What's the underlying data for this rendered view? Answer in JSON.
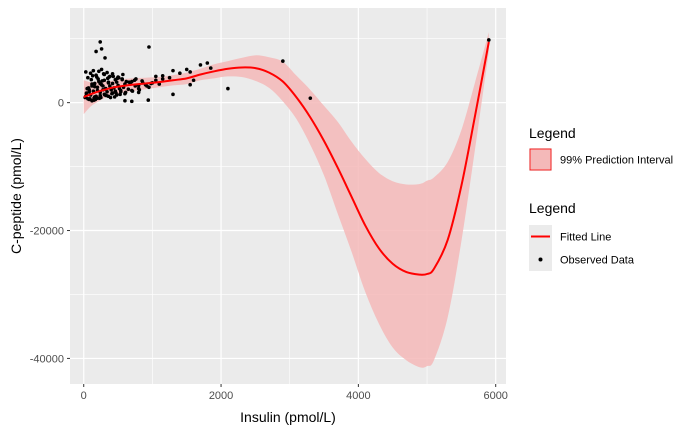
{
  "chart_data": {
    "type": "line",
    "title": "",
    "xlabel": "Insulin (pmol/L)",
    "ylabel": "C-peptide (pmol/L)",
    "xlim": [
      -200,
      6150
    ],
    "ylim": [
      -44000,
      14800
    ],
    "x_ticks": [
      0,
      2000,
      4000,
      6000
    ],
    "x_tick_labels": [
      "0",
      "2000",
      "4000",
      "6000"
    ],
    "y_ticks": [
      0,
      -20000,
      -40000
    ],
    "y_tick_labels": [
      "0",
      "-20000",
      "-40000"
    ],
    "grid": true,
    "legend_position": "right",
    "colors": {
      "panel_background": "#ebebeb",
      "grid": "#ffffff",
      "fitted_line": "#ff0000",
      "interval_fill": "#f4b9b9",
      "interval_outline": "#ff0000",
      "points": "#000000"
    },
    "legends": [
      {
        "title": "Legend",
        "entries": [
          {
            "key": "interval",
            "label": "99% Prediction Interval"
          }
        ]
      },
      {
        "title": "Legend",
        "entries": [
          {
            "key": "line",
            "label": "Fitted Line"
          },
          {
            "key": "points",
            "label": "Observed Data"
          }
        ]
      }
    ],
    "series": [
      {
        "kind": "fitted_line",
        "x": [
          0,
          100,
          200,
          300,
          400,
          500,
          700,
          900,
          1100,
          1300,
          1500,
          1700,
          1900,
          2100,
          2300,
          2500,
          2700,
          2900,
          3100,
          3300,
          3500,
          3700,
          3900,
          4100,
          4300,
          4500,
          4700,
          4900,
          5000,
          5100,
          5300,
          5500,
          5700,
          5900
        ],
        "y": [
          900,
          1300,
          1700,
          2000,
          2300,
          2500,
          2800,
          3000,
          3200,
          3500,
          3800,
          4400,
          4900,
          5300,
          5500,
          5400,
          4700,
          3300,
          800,
          -2300,
          -6000,
          -10200,
          -14700,
          -19200,
          -22800,
          -25200,
          -26500,
          -26900,
          -26800,
          -26000,
          -21500,
          -13000,
          -2000,
          9500
        ]
      },
      {
        "kind": "prediction_interval",
        "x": [
          0,
          100,
          200,
          300,
          400,
          500,
          700,
          900,
          1100,
          1300,
          1500,
          1700,
          1900,
          2100,
          2300,
          2500,
          2700,
          2900,
          3100,
          3300,
          3500,
          3700,
          3900,
          4100,
          4300,
          4500,
          4700,
          4900,
          5000,
          5100,
          5300,
          5500,
          5700,
          5900
        ],
        "upper": [
          3500,
          3200,
          3300,
          3300,
          3400,
          3600,
          3800,
          3900,
          4000,
          4300,
          4700,
          5300,
          6000,
          6500,
          7000,
          7400,
          7100,
          6400,
          4200,
          2000,
          -500,
          -3000,
          -6100,
          -8800,
          -11000,
          -12300,
          -12800,
          -12700,
          -12200,
          -11700,
          -9300,
          -4300,
          3200,
          11000
        ],
        "lower": [
          -1800,
          -600,
          100,
          700,
          1200,
          1400,
          1800,
          2100,
          2400,
          2700,
          2900,
          3500,
          3800,
          4100,
          4000,
          3400,
          2300,
          200,
          -2600,
          -6600,
          -11400,
          -17400,
          -23300,
          -29600,
          -34600,
          -38300,
          -40300,
          -41400,
          -41200,
          -40300,
          -33600,
          -21700,
          -7200,
          8000
        ]
      },
      {
        "kind": "observed",
        "x": [
          20,
          40,
          60,
          80,
          100,
          120,
          140,
          160,
          180,
          200,
          220,
          240,
          260,
          280,
          300,
          320,
          340,
          360,
          380,
          400,
          420,
          440,
          460,
          480,
          500,
          520,
          540,
          560,
          580,
          600,
          650,
          700,
          750,
          800,
          850,
          900,
          950,
          1000,
          1050,
          1100,
          60,
          90,
          130,
          170,
          210,
          250,
          290,
          330,
          370,
          410,
          450,
          490,
          530,
          570,
          610,
          660,
          710,
          760,
          810,
          30,
          70,
          110,
          150,
          190,
          230,
          270,
          310,
          350,
          390,
          430,
          470,
          510,
          50,
          80,
          120,
          160,
          200,
          240,
          280,
          320,
          360,
          30,
          100,
          140,
          180,
          220,
          260,
          300,
          340,
          380,
          420,
          460,
          500,
          560,
          620,
          680,
          740,
          800,
          860,
          920,
          980,
          80,
          120,
          160,
          200,
          240,
          300,
          360,
          420,
          480,
          540,
          600,
          700,
          800,
          40,
          150,
          240,
          260,
          310,
          180,
          1150,
          1250,
          1300,
          1400,
          1500,
          1550,
          1600,
          1700,
          1800,
          1850,
          1550,
          1300,
          950,
          1050,
          1150,
          2100,
          2900,
          3300,
          5900,
          940,
          600,
          700
        ],
        "y": [
          800,
          1500,
          600,
          2000,
          1200,
          2600,
          1800,
          3000,
          1000,
          2400,
          3300,
          1600,
          2800,
          2000,
          3500,
          2200,
          1700,
          3100,
          2600,
          2000,
          3000,
          2300,
          1800,
          3200,
          2700,
          2200,
          1900,
          3600,
          2400,
          2900,
          2100,
          3300,
          2600,
          2200,
          3400,
          2800,
          2400,
          3100,
          3500,
          2900,
          3900,
          600,
          4200,
          500,
          3700,
          800,
          4500,
          1100,
          4000,
          1400,
          900,
          3800,
          1300,
          4400,
          1600,
          3200,
          1800,
          3700,
          2000,
          1000,
          2300,
          3600,
          400,
          4000,
          700,
          3400,
          1200,
          3800,
          800,
          4100,
          1500,
          3900,
          2200,
          1700,
          2900,
          2500,
          1900,
          3000,
          2600,
          2100,
          3200,
          4800,
          4600,
          5000,
          4300,
          4900,
          5200,
          4400,
          4700,
          4100,
          4500,
          3600,
          4000,
          3700,
          3300,
          2900,
          3500,
          2700,
          3100,
          2600,
          3000,
          500,
          300,
          900,
          700,
          1100,
          1300,
          1000,
          1500,
          1200,
          1700,
          1400,
          1900,
          1600,
          1400,
          700,
          9500,
          8400,
          7000,
          8000,
          4200,
          3900,
          5000,
          4600,
          5200,
          4800,
          3500,
          5900,
          6200,
          5400,
          2800,
          1300,
          8700,
          4100,
          3700,
          2200,
          6500,
          700,
          9800,
          400,
          300,
          200
        ]
      }
    ]
  }
}
